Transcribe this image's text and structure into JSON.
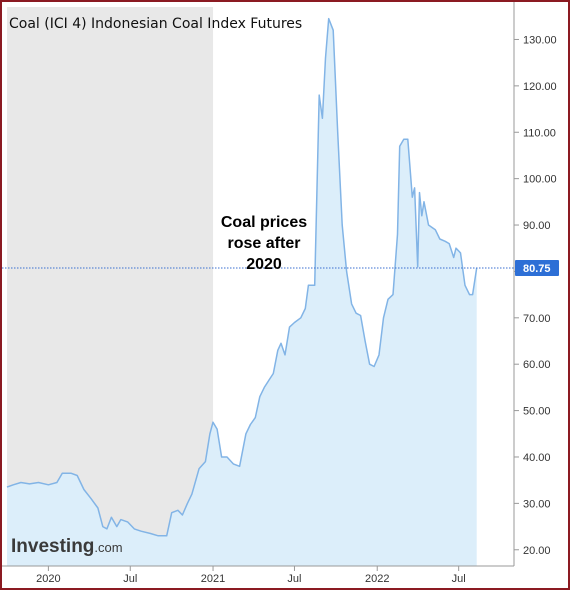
{
  "chart_data": {
    "type": "area",
    "title": "Coal (ICI 4) Indonesian Coal Index Futures",
    "annotation": [
      "Coal prices",
      "rose after",
      "2020"
    ],
    "current_value_label": "80.75",
    "current_value": 80.75,
    "ylim": [
      16.5,
      137
    ],
    "yticks": [
      20,
      30,
      40,
      50,
      60,
      70,
      80,
      90,
      100,
      110,
      120,
      130
    ],
    "ytick_labels": [
      "20.00",
      "30.00",
      "40.00",
      "50.00",
      "60.00",
      "70.00",
      "80.00",
      "90.00",
      "100.00",
      "110.00",
      "120.00",
      "130.00"
    ],
    "xlim": [
      "2019-10-01",
      "2022-11-01"
    ],
    "xticks": [
      {
        "date": "2020-01-01",
        "label": "2020"
      },
      {
        "date": "2020-07-01",
        "label": "Jul"
      },
      {
        "date": "2021-01-01",
        "label": "2021"
      },
      {
        "date": "2021-07-01",
        "label": "Jul"
      },
      {
        "date": "2022-01-01",
        "label": "2022"
      },
      {
        "date": "2022-07-01",
        "label": "Jul"
      }
    ],
    "shaded_region": {
      "start": "2019-10-01",
      "end": "2021-01-01"
    },
    "grid": false,
    "colors": {
      "line": "#82b4e6",
      "fill": "#dceefa",
      "shade": "#e8e8e8",
      "badge": "#2d6fd6",
      "frame": "#8b1a22"
    },
    "series": [
      {
        "points": [
          [
            "2019-10-01",
            33.5
          ],
          [
            "2019-10-15",
            34.0
          ],
          [
            "2019-11-01",
            34.5
          ],
          [
            "2019-11-20",
            34.2
          ],
          [
            "2019-12-10",
            34.5
          ],
          [
            "2020-01-01",
            34.0
          ],
          [
            "2020-01-20",
            34.5
          ],
          [
            "2020-02-01",
            36.5
          ],
          [
            "2020-02-20",
            36.5
          ],
          [
            "2020-03-05",
            36.0
          ],
          [
            "2020-03-20",
            33.0
          ],
          [
            "2020-04-05",
            31.0
          ],
          [
            "2020-04-20",
            29.0
          ],
          [
            "2020-05-01",
            25.0
          ],
          [
            "2020-05-10",
            24.5
          ],
          [
            "2020-05-20",
            27.0
          ],
          [
            "2020-06-01",
            25.0
          ],
          [
            "2020-06-10",
            26.5
          ],
          [
            "2020-06-25",
            26.0
          ],
          [
            "2020-07-10",
            24.5
          ],
          [
            "2020-07-25",
            24.0
          ],
          [
            "2020-08-15",
            23.5
          ],
          [
            "2020-09-01",
            23.0
          ],
          [
            "2020-09-20",
            23.0
          ],
          [
            "2020-10-01",
            28.0
          ],
          [
            "2020-10-15",
            28.5
          ],
          [
            "2020-10-25",
            27.5
          ],
          [
            "2020-11-05",
            30.0
          ],
          [
            "2020-11-15",
            32.0
          ],
          [
            "2020-12-01",
            37.5
          ],
          [
            "2020-12-15",
            39.0
          ],
          [
            "2020-12-25",
            45.0
          ],
          [
            "2021-01-01",
            47.5
          ],
          [
            "2021-01-10",
            46.0
          ],
          [
            "2021-01-20",
            40.0
          ],
          [
            "2021-02-01",
            40.0
          ],
          [
            "2021-02-15",
            38.5
          ],
          [
            "2021-03-01",
            38.0
          ],
          [
            "2021-03-15",
            45.0
          ],
          [
            "2021-03-25",
            47.0
          ],
          [
            "2021-04-05",
            48.5
          ],
          [
            "2021-04-15",
            53.0
          ],
          [
            "2021-04-25",
            55.0
          ],
          [
            "2021-05-05",
            56.5
          ],
          [
            "2021-05-15",
            58.0
          ],
          [
            "2021-05-25",
            63.0
          ],
          [
            "2021-06-01",
            64.5
          ],
          [
            "2021-06-10",
            62.0
          ],
          [
            "2021-06-20",
            68.0
          ],
          [
            "2021-07-01",
            69.0
          ],
          [
            "2021-07-15",
            70.0
          ],
          [
            "2021-07-25",
            72.0
          ],
          [
            "2021-08-01",
            77.0
          ],
          [
            "2021-08-15",
            77.0
          ],
          [
            "2021-08-25",
            118.0
          ],
          [
            "2021-09-01",
            113.0
          ],
          [
            "2021-09-08",
            126.0
          ],
          [
            "2021-09-15",
            134.5
          ],
          [
            "2021-09-25",
            132.0
          ],
          [
            "2021-10-05",
            110.0
          ],
          [
            "2021-10-15",
            90.0
          ],
          [
            "2021-10-25",
            80.0
          ],
          [
            "2021-11-05",
            73.0
          ],
          [
            "2021-11-15",
            71.0
          ],
          [
            "2021-11-25",
            70.5
          ],
          [
            "2021-12-05",
            65.0
          ],
          [
            "2021-12-15",
            60.0
          ],
          [
            "2021-12-25",
            59.5
          ],
          [
            "2022-01-05",
            62.0
          ],
          [
            "2022-01-15",
            70.0
          ],
          [
            "2022-01-25",
            74.0
          ],
          [
            "2022-02-05",
            75.0
          ],
          [
            "2022-02-15",
            88.0
          ],
          [
            "2022-02-20",
            107.0
          ],
          [
            "2022-03-01",
            108.5
          ],
          [
            "2022-03-10",
            108.5
          ],
          [
            "2022-03-20",
            96.0
          ],
          [
            "2022-03-25",
            98.0
          ],
          [
            "2022-04-01",
            81.0
          ],
          [
            "2022-04-05",
            97.0
          ],
          [
            "2022-04-10",
            92.0
          ],
          [
            "2022-04-15",
            95.0
          ],
          [
            "2022-04-25",
            90.0
          ],
          [
            "2022-05-10",
            89.0
          ],
          [
            "2022-05-20",
            87.0
          ],
          [
            "2022-06-01",
            86.5
          ],
          [
            "2022-06-10",
            86.0
          ],
          [
            "2022-06-20",
            83.0
          ],
          [
            "2022-06-25",
            85.0
          ],
          [
            "2022-07-05",
            84.0
          ],
          [
            "2022-07-15",
            77.0
          ],
          [
            "2022-07-25",
            75.0
          ],
          [
            "2022-08-01",
            75.0
          ],
          [
            "2022-08-10",
            80.75
          ]
        ]
      }
    ]
  },
  "branding": {
    "logo_main": "Investing",
    "logo_suffix": ".com"
  }
}
